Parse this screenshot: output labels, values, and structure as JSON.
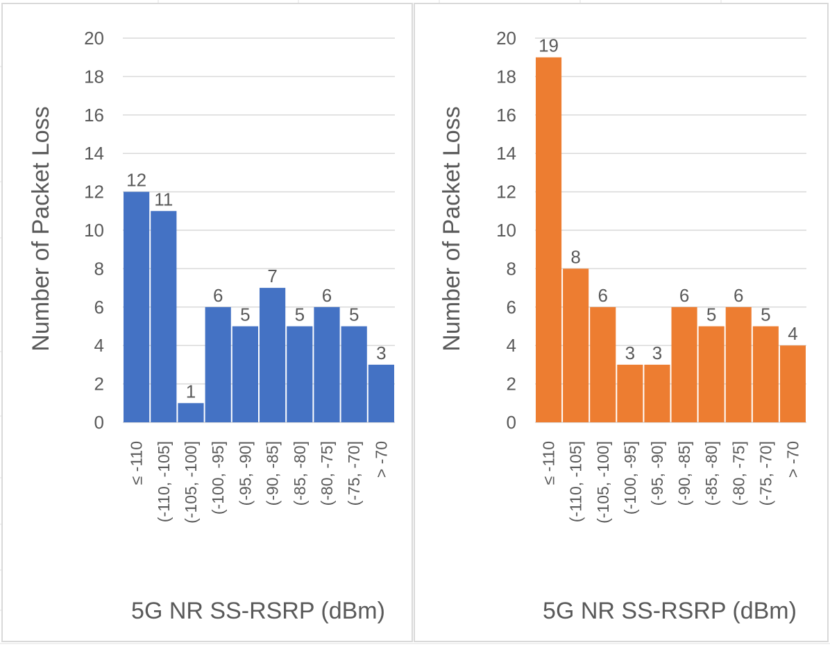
{
  "chart_data": [
    {
      "type": "bar",
      "xlabel": "5G NR SS-RSRP (dBm)",
      "ylabel": "Number of Packet Loss",
      "ylim": [
        0,
        20
      ],
      "yticks": [
        "0",
        "2",
        "4",
        "6",
        "8",
        "10",
        "12",
        "14",
        "16",
        "18",
        "20"
      ],
      "grid": true,
      "legend": "none",
      "color": "#4472C4",
      "categories": [
        "≤ -110",
        "(-110, -105]",
        "(-105, -100]",
        "(-100, -95]",
        "(-95, -90]",
        "(-90, -85]",
        "(-85, -80]",
        "(-80, -75]",
        "(-75, -70]",
        "> -70"
      ],
      "values": [
        12,
        11,
        1,
        6,
        5,
        7,
        5,
        6,
        5,
        3
      ]
    },
    {
      "type": "bar",
      "xlabel": "5G NR SS-RSRP (dBm)",
      "ylabel": "Number of Packet Loss",
      "ylim": [
        0,
        20
      ],
      "yticks": [
        "0",
        "2",
        "4",
        "6",
        "8",
        "10",
        "12",
        "14",
        "16",
        "18",
        "20"
      ],
      "grid": true,
      "legend": "none",
      "color": "#ED7D31",
      "categories": [
        "≤ -110",
        "(-110, -105]",
        "(-105, -100]",
        "(-100, -95]",
        "(-95, -90]",
        "(-90, -85]",
        "(-85, -80]",
        "(-80, -75]",
        "(-75, -70]",
        "> -70"
      ],
      "values": [
        19,
        8,
        6,
        3,
        3,
        6,
        5,
        6,
        5,
        4
      ]
    }
  ]
}
